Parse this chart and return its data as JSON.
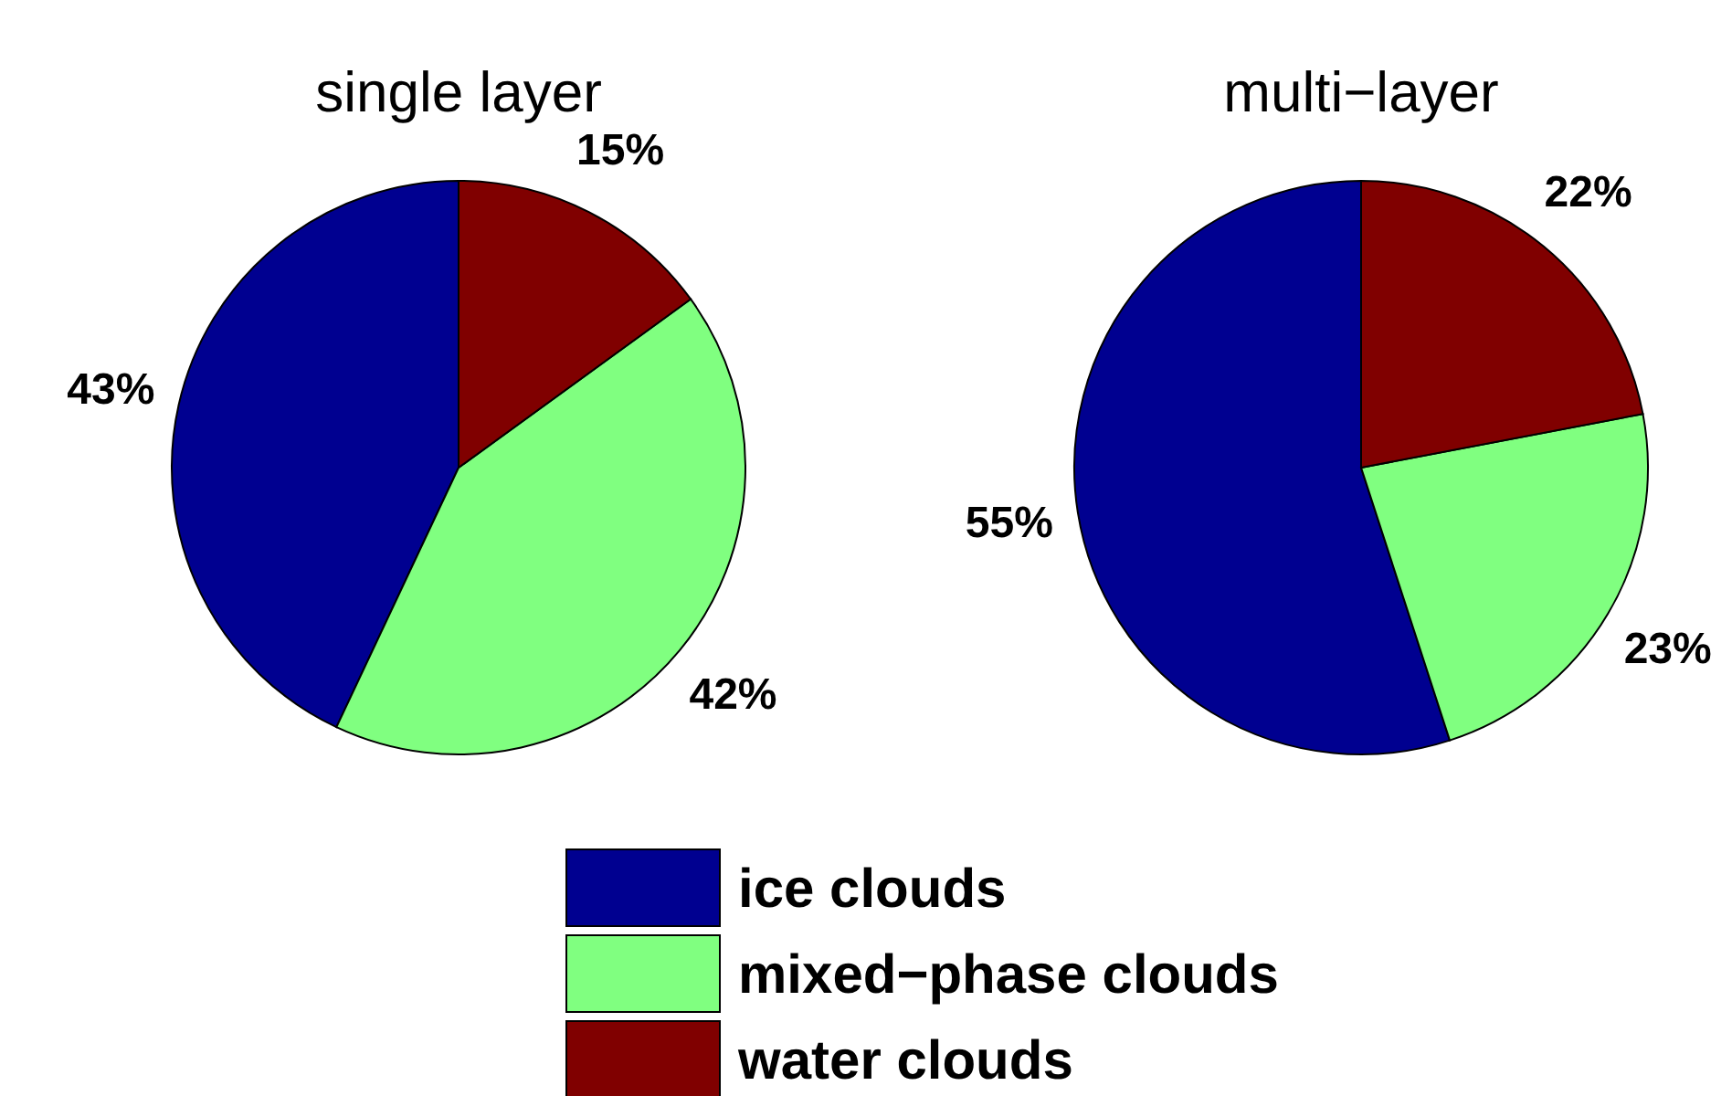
{
  "chart_data": [
    {
      "type": "pie",
      "title": "single layer",
      "categories": [
        "ice clouds",
        "mixed−phase clouds",
        "water clouds"
      ],
      "values": [
        43,
        42,
        15
      ],
      "value_labels": [
        "43%",
        "42%",
        "15%"
      ],
      "colors": [
        "#000090",
        "#80ff80",
        "#800000"
      ],
      "legend": "bottom"
    },
    {
      "type": "pie",
      "title": "multi−layer",
      "categories": [
        null,
        null,
        null
      ],
      "values": [
        55,
        23,
        22
      ],
      "value_labels": [
        "55%",
        "23%",
        "22%"
      ],
      "colors": [
        "#000090",
        "#80ff80",
        "#800000"
      ]
    }
  ]
}
